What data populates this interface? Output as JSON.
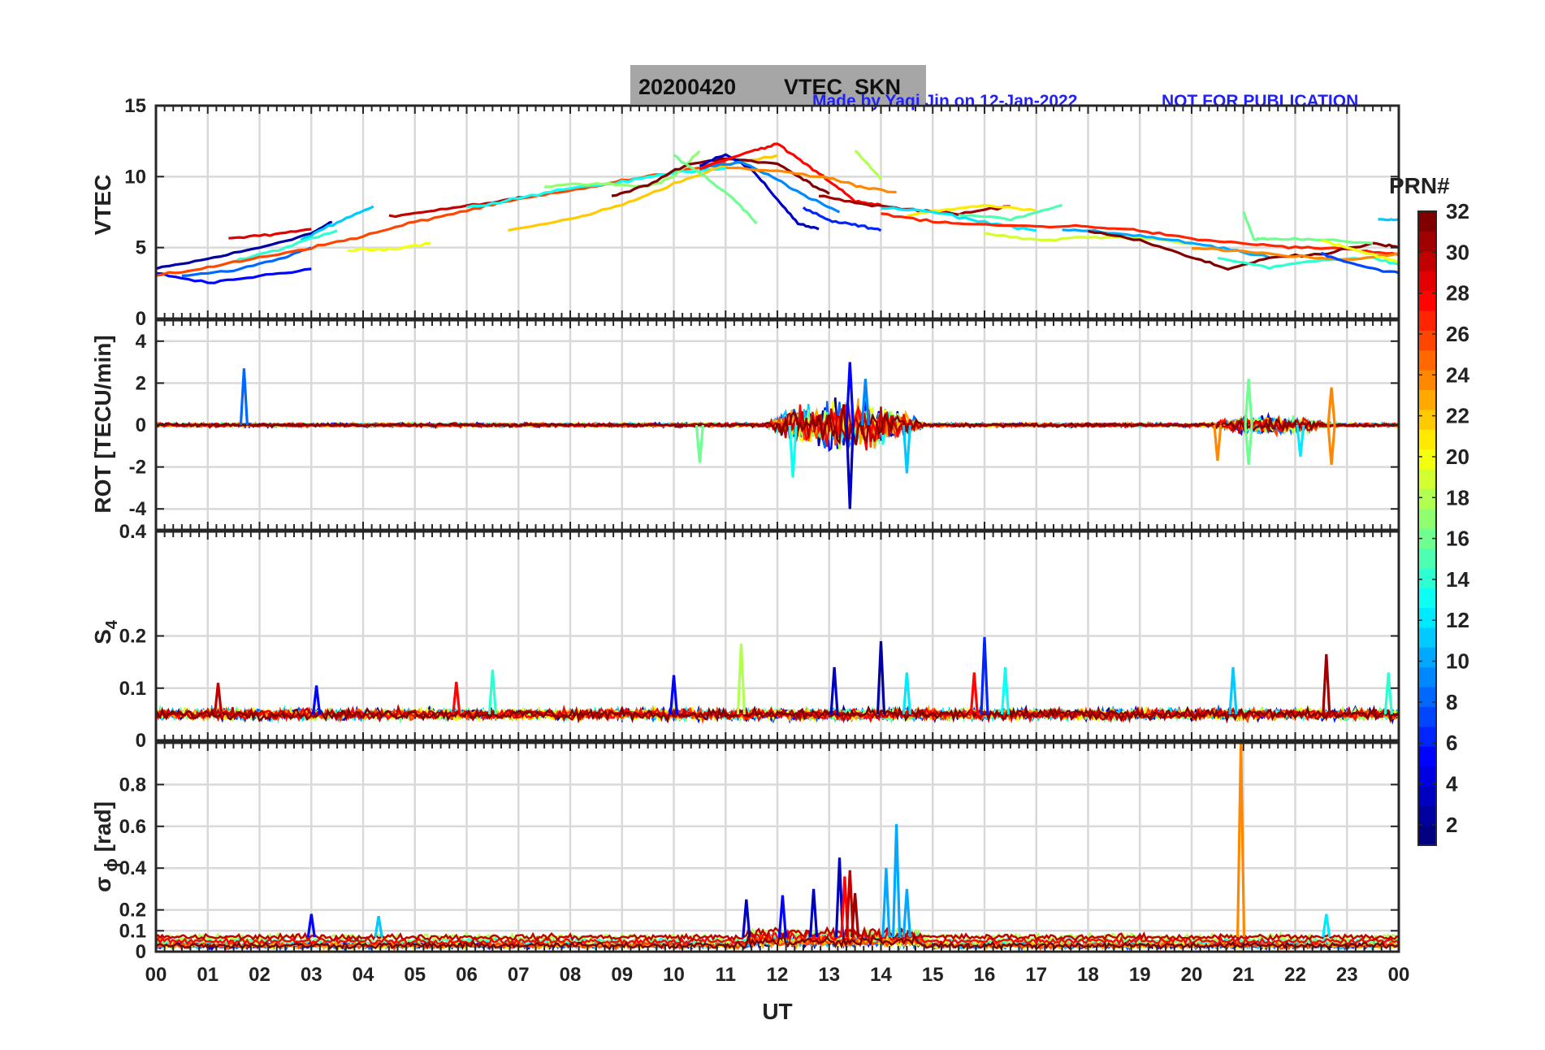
{
  "title": {
    "date": "20200420",
    "name": "VTEC  SKN",
    "credit": "Made by Yaqi Jin on 12-Jan-2022",
    "notice": "NOT FOR PUBLICATION",
    "title_bg": "#a6a6a6",
    "credit_color": "#1f1fff"
  },
  "chart_data": [
    {
      "type": "line",
      "panel": "vtec",
      "ylabel": "VTEC",
      "xlim": [
        0,
        24
      ],
      "ylim": [
        0,
        15
      ],
      "yticks": [
        0,
        5,
        10,
        15
      ],
      "ytick_labels": [
        "0",
        "5",
        "10",
        "15"
      ],
      "grid": true,
      "series": [
        {
          "prn": 2,
          "x": [
            0.0,
            1.0,
            2.0,
            3.0,
            3.4
          ],
          "y": [
            3.5,
            4.2,
            5.0,
            6.0,
            6.8
          ]
        },
        {
          "prn": 5,
          "x": [
            0.0,
            1.0,
            2.0,
            3.0
          ],
          "y": [
            3.2,
            2.5,
            3.0,
            3.5
          ]
        },
        {
          "prn": 8,
          "x": [
            0.5,
            1.5,
            2.5,
            3.0
          ],
          "y": [
            3.0,
            3.4,
            4.3,
            5.0
          ]
        },
        {
          "prn": 11,
          "x": [
            2.8,
            3.5,
            4.2
          ],
          "y": [
            5.5,
            6.8,
            7.9
          ]
        },
        {
          "prn": 14,
          "x": [
            1.5,
            2.5,
            3.5
          ],
          "y": [
            4.0,
            5.0,
            6.2
          ]
        },
        {
          "prn": 20,
          "x": [
            3.7,
            4.5,
            5.3
          ],
          "y": [
            4.8,
            4.9,
            5.3
          ]
        },
        {
          "prn": 29,
          "x": [
            1.4,
            2.2,
            3.0
          ],
          "y": [
            5.7,
            5.9,
            6.3
          ]
        },
        {
          "prn": 26,
          "x": [
            0.0,
            1.0,
            2.0,
            3.0,
            4.0,
            5.0,
            6.0,
            7.0,
            8.0,
            9.0,
            10.0,
            11.0
          ],
          "y": [
            3.0,
            3.6,
            4.3,
            5.0,
            5.8,
            6.8,
            7.6,
            8.4,
            9.0,
            9.7,
            10.3,
            11.0
          ]
        },
        {
          "prn": 30,
          "x": [
            4.5,
            5.5,
            6.5,
            7.3
          ],
          "y": [
            7.2,
            7.7,
            8.2,
            8.7
          ]
        },
        {
          "prn": 13,
          "x": [
            6.0,
            7.0,
            8.0,
            9.0,
            10.0,
            11.0
          ],
          "y": [
            7.8,
            8.5,
            9.2,
            9.6,
            10.3,
            10.6
          ]
        },
        {
          "prn": 17,
          "x": [
            7.5,
            8.5,
            9.5,
            10.0,
            10.5
          ],
          "y": [
            9.3,
            9.5,
            9.3,
            10.0,
            11.8
          ]
        },
        {
          "prn": 22,
          "x": [
            6.8,
            8.0,
            9.0,
            10.0,
            11.0,
            12.0
          ],
          "y": [
            6.2,
            7.0,
            8.0,
            9.5,
            10.8,
            11.5
          ]
        },
        {
          "prn": 32,
          "x": [
            8.8,
            9.5,
            10.2,
            11.0,
            12.0,
            12.5,
            13.0
          ],
          "y": [
            8.6,
            9.4,
            10.8,
            11.3,
            10.9,
            9.8,
            8.8
          ]
        },
        {
          "prn": 3,
          "x": [
            10.5,
            11.0,
            11.5,
            12.0,
            12.4,
            12.8
          ],
          "y": [
            10.8,
            11.6,
            10.5,
            8.4,
            6.7,
            6.3
          ]
        },
        {
          "prn": 9,
          "x": [
            10.5,
            11.3,
            12.0,
            12.6,
            13.2
          ],
          "y": [
            10.6,
            11.0,
            9.8,
            8.5,
            7.5
          ]
        },
        {
          "prn": 16,
          "x": [
            10.0,
            10.6,
            11.2,
            11.6
          ],
          "y": [
            11.5,
            10.0,
            8.3,
            6.7
          ]
        },
        {
          "prn": 28,
          "x": [
            10.5,
            11.5,
            12.0,
            12.5,
            13.0,
            13.5,
            14.0
          ],
          "y": [
            10.6,
            11.8,
            12.3,
            11.0,
            9.7,
            8.3,
            8.0
          ]
        },
        {
          "prn": 24,
          "x": [
            11.0,
            12.0,
            13.0,
            13.6,
            14.3
          ],
          "y": [
            10.6,
            10.4,
            9.9,
            9.3,
            8.9
          ]
        },
        {
          "prn": 18,
          "x": [
            13.5,
            14.0
          ],
          "y": [
            11.9,
            9.8
          ]
        },
        {
          "prn": 6,
          "x": [
            12.5,
            13.0,
            13.5,
            14.0
          ],
          "y": [
            7.8,
            6.9,
            6.6,
            6.2
          ]
        },
        {
          "prn": 31,
          "x": [
            12.8,
            13.6,
            14.5,
            15.5,
            16.5
          ],
          "y": [
            8.7,
            8.1,
            7.7,
            7.4,
            7.9
          ]
        },
        {
          "prn": 21,
          "x": [
            14.5,
            15.0,
            16.0,
            17.0
          ],
          "y": [
            7.2,
            7.6,
            8.0,
            7.6
          ]
        },
        {
          "prn": 15,
          "x": [
            15.5,
            16.5,
            17.5
          ],
          "y": [
            7.3,
            7.0,
            8.0
          ]
        },
        {
          "prn": 12,
          "x": [
            14.0,
            15.0,
            16.0,
            17.0
          ],
          "y": [
            7.8,
            7.5,
            6.8,
            6.2
          ]
        },
        {
          "prn": 27,
          "x": [
            14.0,
            15.0,
            16.0,
            17.0,
            18.0,
            19.0,
            20.0,
            21.0,
            22.0,
            23.0,
            24.0
          ],
          "y": [
            7.4,
            6.8,
            6.6,
            6.5,
            6.5,
            6.2,
            5.6,
            5.3,
            5.0,
            4.9,
            4.5
          ]
        },
        {
          "prn": 19,
          "x": [
            16.0,
            17.0,
            18.0,
            19.0,
            20.0
          ],
          "y": [
            6.0,
            5.5,
            5.7,
            5.7,
            5.3
          ]
        },
        {
          "prn": 10,
          "x": [
            17.5,
            18.5,
            19.5,
            20.5,
            21.5
          ],
          "y": [
            6.3,
            6.0,
            5.6,
            5.0,
            4.3
          ]
        },
        {
          "prn": 32,
          "x": [
            18.0,
            19.0,
            20.0,
            20.7,
            21.5,
            22.5,
            23.5,
            24.0
          ],
          "y": [
            6.2,
            5.5,
            4.3,
            3.5,
            4.3,
            4.5,
            5.3,
            5.0
          ]
        },
        {
          "prn": 16,
          "x": [
            21.0,
            21.2,
            21.5,
            22.5,
            23.5
          ],
          "y": [
            7.5,
            5.6,
            5.6,
            5.6,
            5.3
          ]
        },
        {
          "prn": 14,
          "x": [
            20.5,
            21.5,
            22.5,
            23.5,
            24.0
          ],
          "y": [
            4.3,
            3.6,
            4.1,
            4.3,
            3.8
          ]
        },
        {
          "prn": 24,
          "x": [
            20.0,
            21.0,
            22.0,
            23.0,
            24.0
          ],
          "y": [
            5.0,
            4.7,
            4.4,
            4.1,
            4.6
          ]
        },
        {
          "prn": 7,
          "x": [
            22.5,
            23.0,
            23.5,
            24.0
          ],
          "y": [
            4.6,
            4.0,
            3.5,
            3.2
          ]
        },
        {
          "prn": 20,
          "x": [
            22.5,
            23.2,
            24.0
          ],
          "y": [
            5.5,
            4.8,
            4.0
          ]
        },
        {
          "prn": 11,
          "x": [
            23.6,
            24.0
          ],
          "y": [
            7.0,
            7.0
          ]
        }
      ]
    },
    {
      "type": "line",
      "panel": "rot",
      "ylabel": "ROT [TECU/min]",
      "xlim": [
        0,
        24
      ],
      "ylim": [
        -5,
        5
      ],
      "yticks": [
        -4,
        -2,
        0,
        2,
        4
      ],
      "ytick_labels": [
        "-4",
        "-2",
        "0",
        "2",
        "4"
      ],
      "grid": true,
      "activity_windows": [
        {
          "center": 13.3,
          "width": 3.2,
          "amplitude": 1.6
        },
        {
          "center": 21.5,
          "width": 2.6,
          "amplitude": 0.6
        }
      ],
      "spikes": [
        {
          "x": 1.7,
          "y": 2.7,
          "prn": 8
        },
        {
          "x": 10.5,
          "y": -1.8,
          "prn": 16
        },
        {
          "x": 12.3,
          "y": -2.5,
          "prn": 13
        },
        {
          "x": 13.4,
          "y": 3.0,
          "prn": 5
        },
        {
          "x": 13.4,
          "y": -4.0,
          "prn": 3
        },
        {
          "x": 13.7,
          "y": 2.2,
          "prn": 9
        },
        {
          "x": 14.5,
          "y": -2.3,
          "prn": 11
        },
        {
          "x": 20.5,
          "y": -1.7,
          "prn": 24
        },
        {
          "x": 21.1,
          "y": 2.2,
          "prn": 16
        },
        {
          "x": 21.1,
          "y": -1.9,
          "prn": 16
        },
        {
          "x": 22.7,
          "y": 1.8,
          "prn": 24
        },
        {
          "x": 22.7,
          "y": -1.9,
          "prn": 24
        },
        {
          "x": 22.1,
          "y": -1.5,
          "prn": 12
        }
      ]
    },
    {
      "type": "line",
      "panel": "s4",
      "ylabel": "S4",
      "xlim": [
        0,
        24
      ],
      "ylim": [
        0,
        0.4
      ],
      "yticks": [
        0,
        0.1,
        0.2,
        0.4
      ],
      "ytick_labels": [
        "0",
        "0.1",
        "0.2",
        "0.4"
      ],
      "grid": true,
      "baseline": 0.05,
      "spikes": [
        {
          "x": 1.2,
          "y": 0.11,
          "prn": 30
        },
        {
          "x": 3.1,
          "y": 0.105,
          "prn": 5
        },
        {
          "x": 5.8,
          "y": 0.112,
          "prn": 28
        },
        {
          "x": 6.5,
          "y": 0.135,
          "prn": 14
        },
        {
          "x": 10.0,
          "y": 0.125,
          "prn": 5
        },
        {
          "x": 11.3,
          "y": 0.185,
          "prn": 18
        },
        {
          "x": 13.1,
          "y": 0.14,
          "prn": 3
        },
        {
          "x": 14.0,
          "y": 0.19,
          "prn": 2
        },
        {
          "x": 14.5,
          "y": 0.13,
          "prn": 12
        },
        {
          "x": 16.0,
          "y": 0.198,
          "prn": 6
        },
        {
          "x": 16.4,
          "y": 0.14,
          "prn": 13
        },
        {
          "x": 15.8,
          "y": 0.13,
          "prn": 28
        },
        {
          "x": 20.8,
          "y": 0.14,
          "prn": 11
        },
        {
          "x": 22.6,
          "y": 0.165,
          "prn": 31
        },
        {
          "x": 23.8,
          "y": 0.13,
          "prn": 14
        }
      ]
    },
    {
      "type": "line",
      "panel": "sigma_phi",
      "ylabel": "σ ϕ [rad]",
      "xlim": [
        0,
        24
      ],
      "ylim": [
        0,
        1
      ],
      "yticks": [
        0,
        0.1,
        0.2,
        0.4,
        0.6,
        0.8
      ],
      "ytick_labels": [
        "0",
        "0.1",
        "0.2",
        "0.4",
        "0.6",
        "0.8"
      ],
      "grid": true,
      "baseline": 0.07,
      "spikes": [
        {
          "x": 3.0,
          "y": 0.18,
          "prn": 5
        },
        {
          "x": 4.3,
          "y": 0.17,
          "prn": 11
        },
        {
          "x": 11.4,
          "y": 0.25,
          "prn": 3
        },
        {
          "x": 12.1,
          "y": 0.27,
          "prn": 5
        },
        {
          "x": 12.7,
          "y": 0.3,
          "prn": 3
        },
        {
          "x": 13.2,
          "y": 0.45,
          "prn": 3
        },
        {
          "x": 13.3,
          "y": 0.36,
          "prn": 28
        },
        {
          "x": 13.4,
          "y": 0.39,
          "prn": 30
        },
        {
          "x": 13.5,
          "y": 0.28,
          "prn": 31
        },
        {
          "x": 14.3,
          "y": 0.61,
          "prn": 10
        },
        {
          "x": 14.1,
          "y": 0.4,
          "prn": 10
        },
        {
          "x": 14.5,
          "y": 0.3,
          "prn": 10
        },
        {
          "x": 20.95,
          "y": 1.0,
          "prn": 24
        },
        {
          "x": 22.6,
          "y": 0.18,
          "prn": 12
        }
      ]
    }
  ],
  "x_axis": {
    "label": "UT",
    "tick_labels": [
      "00",
      "01",
      "02",
      "03",
      "04",
      "05",
      "06",
      "07",
      "08",
      "09",
      "10",
      "11",
      "12",
      "13",
      "14",
      "15",
      "16",
      "17",
      "18",
      "19",
      "20",
      "21",
      "22",
      "23",
      "00"
    ]
  },
  "colorbar": {
    "label": "PRN#",
    "min": 1,
    "max": 32,
    "tick_labels": [
      "2",
      "4",
      "6",
      "8",
      "10",
      "12",
      "14",
      "16",
      "18",
      "20",
      "22",
      "24",
      "26",
      "28",
      "30",
      "32"
    ],
    "colormap": "jet"
  }
}
